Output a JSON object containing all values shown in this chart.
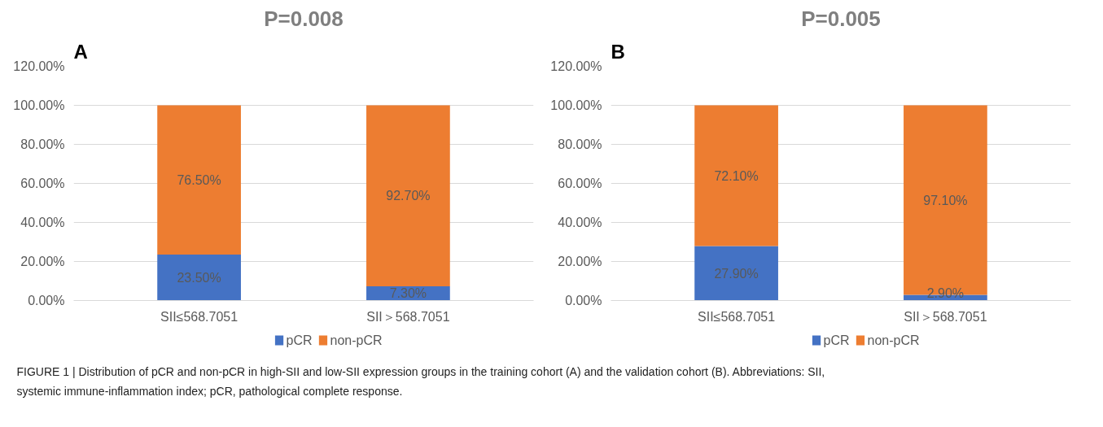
{
  "chart_data": [
    {
      "type": "bar",
      "stacked": true,
      "title": "P=0.008",
      "categories": [
        "SII≤568.7051",
        "SII＞568.7051"
      ],
      "series": [
        {
          "name": "pCR",
          "color": "#4472c4",
          "values": [
            23.5,
            7.3
          ],
          "value_labels": [
            "23.50%",
            "7.30%"
          ]
        },
        {
          "name": "non-pCR",
          "color": "#ed7d31",
          "values": [
            76.5,
            92.7
          ],
          "value_labels": [
            "76.50%",
            "92.70%"
          ]
        }
      ],
      "ylim": [
        0,
        120
      ],
      "yticks": [
        {
          "value": 0,
          "label": "0.00%"
        },
        {
          "value": 20,
          "label": "20.00%"
        },
        {
          "value": 40,
          "label": "40.00%"
        },
        {
          "value": 60,
          "label": "60.00%"
        },
        {
          "value": 80,
          "label": "80.00%"
        },
        {
          "value": 100,
          "label": "100.00%"
        },
        {
          "value": 120,
          "label": "120.00%"
        }
      ],
      "grid": "y",
      "legend": "bottom",
      "annotations": [
        "A",
        "FIGURE 1 | Distribution of pCR and non-pCR in high-SII and low-SII expression groups in the training cohort (A) and the validation cohort (B). Abbreviations: SII, systemic immune-inflammation index; pCR, pathological complete response."
      ]
    },
    {
      "type": "bar",
      "stacked": true,
      "title": "P=0.005",
      "categories": [
        "SII≤568.7051",
        "SII＞568.7051"
      ],
      "series": [
        {
          "name": "pCR",
          "color": "#4472c4",
          "values": [
            27.9,
            2.9
          ],
          "value_labels": [
            "27.90%",
            "2.90%"
          ]
        },
        {
          "name": "non-pCR",
          "color": "#ed7d31",
          "values": [
            72.1,
            97.1
          ],
          "value_labels": [
            "72.10%",
            "97.10%"
          ]
        }
      ],
      "ylim": [
        0,
        120
      ],
      "yticks": [
        {
          "value": 0,
          "label": "0.00%"
        },
        {
          "value": 20,
          "label": "20.00%"
        },
        {
          "value": 40,
          "label": "40.00%"
        },
        {
          "value": 60,
          "label": "60.00%"
        },
        {
          "value": 80,
          "label": "80.00%"
        },
        {
          "value": 100,
          "label": "100.00%"
        },
        {
          "value": 120,
          "label": "120.00%"
        }
      ],
      "grid": "y",
      "legend": "bottom",
      "annotations": [
        "B"
      ]
    }
  ]
}
